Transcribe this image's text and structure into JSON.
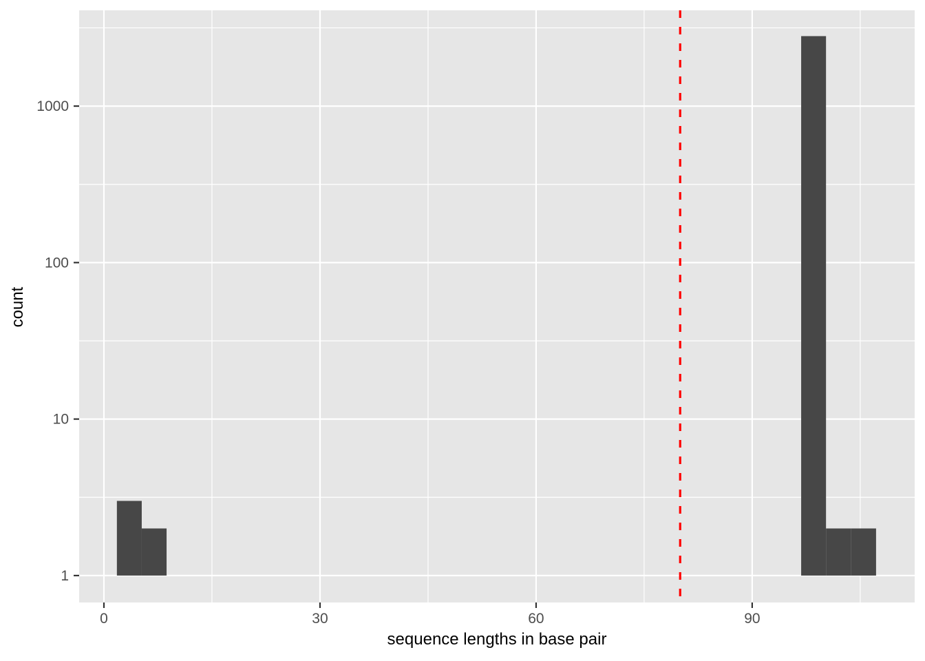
{
  "chart_data": {
    "type": "bar",
    "subtype": "histogram",
    "title": "",
    "xlabel": "sequence lengths in base pair",
    "ylabel": "count",
    "y_scale": "log10",
    "xlim": [
      -3.44,
      112.56
    ],
    "ylim_log10": [
      -0.172,
      3.612
    ],
    "x_ticks": [
      0,
      30,
      60,
      90
    ],
    "x_tick_labels": [
      "0",
      "30",
      "60",
      "90"
    ],
    "x_minor_ticks": [
      15,
      45,
      75,
      105
    ],
    "y_ticks": [
      1,
      10,
      100,
      1000
    ],
    "y_tick_labels": [
      "1",
      "10",
      "100",
      "1000"
    ],
    "y_minor_ticks": [
      3.1623,
      31.623,
      316.23,
      3162.3
    ],
    "bins": [
      {
        "x_start": 1.8,
        "x_end": 5.25,
        "count": 3
      },
      {
        "x_start": 5.25,
        "x_end": 8.7,
        "count": 2
      },
      {
        "x_start": 96.8,
        "x_end": 100.25,
        "count": 2800
      },
      {
        "x_start": 100.25,
        "x_end": 103.7,
        "count": 2
      },
      {
        "x_start": 103.7,
        "x_end": 107.2,
        "count": 2
      }
    ],
    "vline": {
      "x": 80,
      "color": "#FF0000",
      "style": "dashed"
    },
    "grid": true,
    "legend": "none",
    "colors": {
      "bar_fill": "#474747",
      "panel_background": "#E6E6E6",
      "grid_major": "#FFFFFF",
      "grid_minor": "#FFFFFF",
      "tick_mark": "#333333",
      "tick_text": "#4D4D4D",
      "axis_title_text": "#000000",
      "figure_background": "#FFFFFF"
    }
  }
}
